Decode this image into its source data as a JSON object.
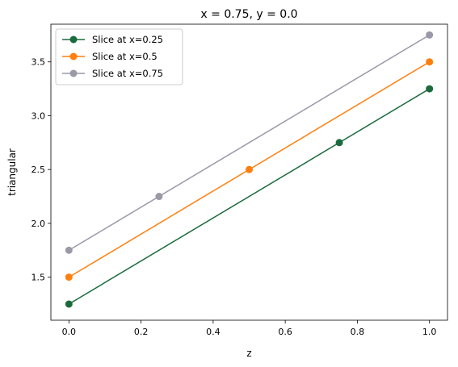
{
  "chart_data": {
    "type": "line",
    "title": "x = 0.75, y = 0.0",
    "xlabel": "z",
    "ylabel": "triangular",
    "xlim": [
      -0.05,
      1.05
    ],
    "ylim": [
      1.1,
      3.85
    ],
    "xticks": [
      0.0,
      0.2,
      0.4,
      0.6,
      0.8,
      1.0
    ],
    "xtick_labels": [
      "0.0",
      "0.2",
      "0.4",
      "0.6",
      "0.8",
      "1.0"
    ],
    "yticks": [
      1.5,
      2.0,
      2.5,
      3.0,
      3.5
    ],
    "ytick_labels": [
      "1.5",
      "2.0",
      "2.5",
      "3.0",
      "3.5"
    ],
    "grid": false,
    "legend_position": "top-left",
    "series": [
      {
        "name": "Slice at x=0.25",
        "color": "#1a6b3c",
        "line": {
          "x": [
            0.0,
            1.0
          ],
          "y": [
            1.25,
            3.25
          ]
        },
        "markers": {
          "x": [
            0.0,
            0.75,
            1.0
          ],
          "y": [
            1.25,
            2.75,
            3.25
          ]
        }
      },
      {
        "name": "Slice at x=0.5",
        "color": "#ff7f0e",
        "line": {
          "x": [
            0.0,
            1.0
          ],
          "y": [
            1.5,
            3.5
          ]
        },
        "markers": {
          "x": [
            0.0,
            0.5,
            1.0
          ],
          "y": [
            1.5,
            2.5,
            3.5
          ]
        }
      },
      {
        "name": "Slice at x=0.75",
        "color": "#9a99a8",
        "line": {
          "x": [
            0.0,
            1.0
          ],
          "y": [
            1.75,
            3.75
          ]
        },
        "markers": {
          "x": [
            0.0,
            0.25,
            1.0
          ],
          "y": [
            1.75,
            2.25,
            3.75
          ]
        }
      }
    ]
  }
}
